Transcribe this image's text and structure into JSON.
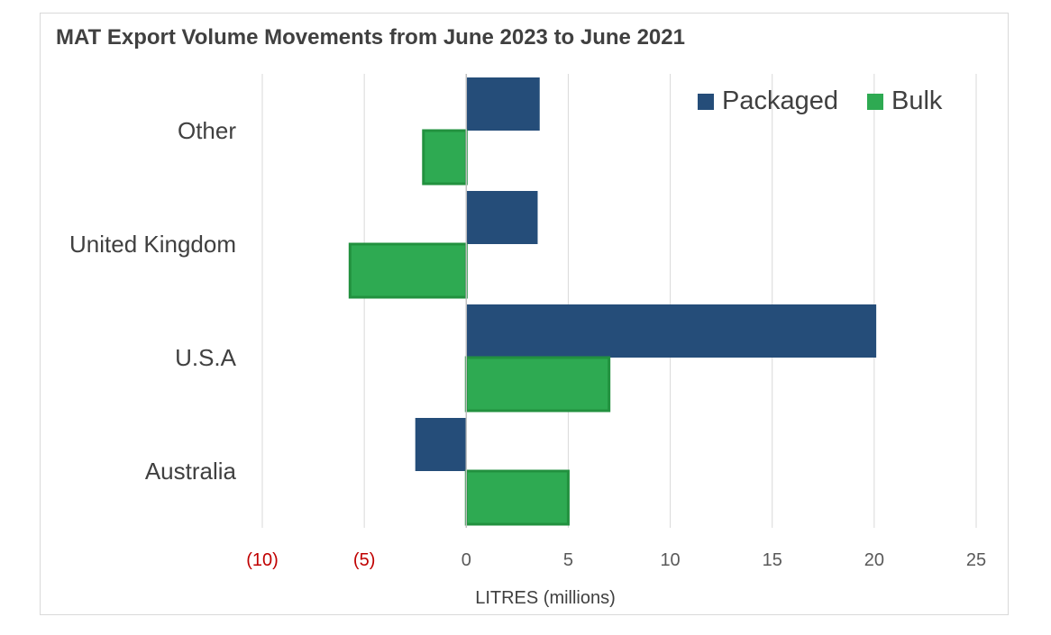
{
  "chart_data": {
    "type": "bar",
    "orientation": "horizontal",
    "title": "MAT Export Volume Movements from June 2023 to June 2021",
    "xlabel": "LITRES (millions)",
    "ylabel": "",
    "xlim": [
      -10,
      25
    ],
    "x_ticks": [
      -10,
      -5,
      0,
      5,
      10,
      15,
      20,
      25
    ],
    "x_tick_labels": [
      "(10)",
      "(5)",
      "0",
      "5",
      "10",
      "15",
      "20",
      "25"
    ],
    "categories": [
      "Other",
      "United Kingdom",
      "U.S.A",
      "Australia"
    ],
    "series": [
      {
        "name": "Packaged",
        "color": "#254d79",
        "values": [
          3.6,
          3.5,
          20.1,
          -2.5
        ]
      },
      {
        "name": "Bulk",
        "color": "#2eaa52",
        "values": [
          -2.1,
          -5.7,
          7.0,
          5.0
        ]
      }
    ],
    "grid": true,
    "legend_position": "top-right",
    "negative_tick_color": "#c00000",
    "tick_color": "#595959"
  }
}
